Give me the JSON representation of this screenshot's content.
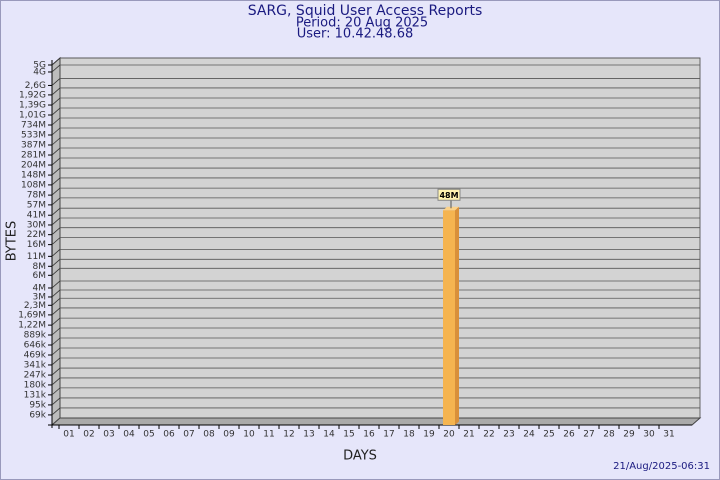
{
  "chart_data": {
    "type": "bar",
    "title": "SARG, Squid User Access Reports",
    "subtitle": "Period: 20 Aug 2025",
    "user": "User: 10.42.48.68",
    "x_label": "DAYS",
    "y_label": "BYTES",
    "timestamp": "21/Aug/2025-06:31",
    "yscale": "log",
    "grid": true,
    "color": "#f5b450",
    "categories": [
      "01",
      "02",
      "03",
      "04",
      "05",
      "06",
      "07",
      "08",
      "09",
      "10",
      "11",
      "12",
      "13",
      "14",
      "15",
      "16",
      "17",
      "18",
      "19",
      "20",
      "21",
      "22",
      "23",
      "24",
      "25",
      "26",
      "27",
      "28",
      "29",
      "30",
      "31"
    ],
    "values": [
      null,
      null,
      null,
      null,
      null,
      null,
      null,
      null,
      null,
      null,
      null,
      null,
      null,
      null,
      null,
      null,
      null,
      null,
      null,
      48000000,
      null,
      null,
      null,
      null,
      null,
      null,
      null,
      null,
      null,
      null,
      null
    ],
    "value_labels": [
      null,
      null,
      null,
      null,
      null,
      null,
      null,
      null,
      null,
      null,
      null,
      null,
      null,
      null,
      null,
      null,
      null,
      null,
      null,
      "48M",
      null,
      null,
      null,
      null,
      null,
      null,
      null,
      null,
      null,
      null,
      null
    ],
    "ylim": [
      50000,
      5000000000
    ],
    "yticks": [
      {
        "value": 69000,
        "label": "69k"
      },
      {
        "value": 95000,
        "label": "95k"
      },
      {
        "value": 131000,
        "label": "131k"
      },
      {
        "value": 180000,
        "label": "180k"
      },
      {
        "value": 247000,
        "label": "247k"
      },
      {
        "value": 341000,
        "label": "341k"
      },
      {
        "value": 469000,
        "label": "469k"
      },
      {
        "value": 646000,
        "label": "646k"
      },
      {
        "value": 889000,
        "label": "889k"
      },
      {
        "value": 1220000,
        "label": "1,22M"
      },
      {
        "value": 1690000,
        "label": "1,69M"
      },
      {
        "value": 2300000,
        "label": "2,3M"
      },
      {
        "value": 3000000,
        "label": "3M"
      },
      {
        "value": 4000000,
        "label": "4M"
      },
      {
        "value": 6000000,
        "label": "6M"
      },
      {
        "value": 8000000,
        "label": "8M"
      },
      {
        "value": 11000000,
        "label": "11M"
      },
      {
        "value": 16000000,
        "label": "16M"
      },
      {
        "value": 22000000,
        "label": "22M"
      },
      {
        "value": 30000000,
        "label": "30M"
      },
      {
        "value": 41000000,
        "label": "41M"
      },
      {
        "value": 57000000,
        "label": "57M"
      },
      {
        "value": 78000000,
        "label": "78M"
      },
      {
        "value": 108000000,
        "label": "108M"
      },
      {
        "value": 148000000,
        "label": "148M"
      },
      {
        "value": 204000000,
        "label": "204M"
      },
      {
        "value": 281000000,
        "label": "281M"
      },
      {
        "value": 387000000,
        "label": "387M"
      },
      {
        "value": 533000000,
        "label": "533M"
      },
      {
        "value": 734000000,
        "label": "734M"
      },
      {
        "value": 1010000000,
        "label": "1,01G"
      },
      {
        "value": 1390000000,
        "label": "1,39G"
      },
      {
        "value": 1920000000,
        "label": "1,92G"
      },
      {
        "value": 2600000000,
        "label": "2,6G"
      },
      {
        "value": 4000000000,
        "label": "4G"
      },
      {
        "value": 5000000000,
        "label": "5G"
      }
    ]
  }
}
